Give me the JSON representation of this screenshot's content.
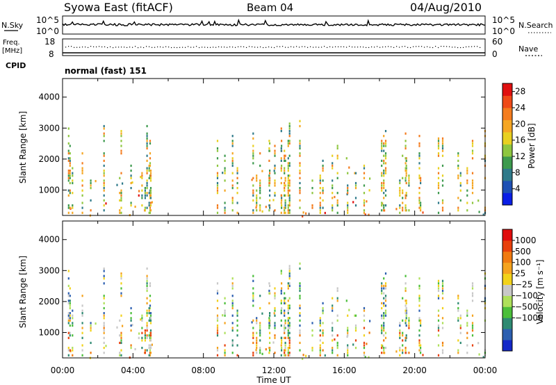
{
  "header": {
    "station": "Syowa East (fitACF)",
    "beam": "Beam 04",
    "date": "04/Aug/2010"
  },
  "panels": {
    "nsky": {
      "left_label": "N.Sky",
      "right_label": "N.Search",
      "left_ticks": [
        "10^5",
        "10^0"
      ],
      "right_ticks": [
        "10^5",
        "10^0"
      ]
    },
    "freq": {
      "left_label_1": "Freq.",
      "left_label_2": "[MHz]",
      "right_label": "Nave",
      "left_ticks": [
        "18",
        "8"
      ],
      "right_ticks": [
        "60",
        "0"
      ]
    },
    "cpid": {
      "label": "CPID",
      "mode": "normal (fast) 151"
    }
  },
  "chart_data": [
    {
      "type": "heatmap",
      "name": "power-panel",
      "ylabel": "Slant Range [km]",
      "xlabel": "Time UT",
      "x_ticks": [
        "00:00",
        "04:00",
        "08:00",
        "12:00",
        "16:00",
        "20:00",
        "00:00"
      ],
      "y_ticks": [
        1000,
        2000,
        3000,
        4000
      ],
      "ylim": [
        180,
        4600
      ],
      "xlim_hours": [
        0,
        24
      ],
      "colorbar": {
        "label": "Power [dB]",
        "ticks": [
          "4",
          "8",
          "12",
          "16",
          "20",
          "24",
          "28"
        ],
        "range": [
          0,
          30
        ],
        "colors": [
          "#0a1ee6",
          "#1e50b4",
          "#2f7a8a",
          "#3d9a4e",
          "#8ec63f",
          "#e8d020",
          "#f5a623",
          "#f47c1e",
          "#ef4a18",
          "#e01010"
        ]
      },
      "activity_regions": [
        {
          "t_start": 0.0,
          "t_end": 0.6,
          "r_min": 180,
          "r_max": 700,
          "level": "high"
        },
        {
          "t_start": 1.5,
          "t_end": 5.2,
          "r_min": 180,
          "r_max": 1500,
          "level": "high"
        },
        {
          "t_start": 8.8,
          "t_end": 12.2,
          "r_min": 300,
          "r_max": 1700,
          "level": "medium"
        },
        {
          "t_start": 13.2,
          "t_end": 21.5,
          "r_min": 180,
          "r_max": 700,
          "level": "high"
        },
        {
          "t_start": 15.0,
          "t_end": 17.5,
          "r_min": 700,
          "r_max": 2200,
          "level": "medium"
        },
        {
          "t_start": 21.5,
          "t_end": 24.0,
          "r_min": 180,
          "r_max": 900,
          "level": "medium"
        }
      ]
    },
    {
      "type": "heatmap",
      "name": "velocity-panel",
      "ylabel": "Slant Range [km]",
      "xlabel": "Time UT",
      "x_ticks": [
        "00:00",
        "04:00",
        "08:00",
        "12:00",
        "16:00",
        "20:00",
        "00:00"
      ],
      "y_ticks": [
        1000,
        2000,
        3000,
        4000
      ],
      "ylim": [
        180,
        4600
      ],
      "xlim_hours": [
        0,
        24
      ],
      "colorbar": {
        "label": "Velocity [m s⁻¹]",
        "ticks": [
          "1000",
          "500",
          "100",
          "25",
          "−25",
          "−100",
          "−500",
          "−1000"
        ],
        "colors": [
          "#1428c8",
          "#2c5fb0",
          "#2e8a72",
          "#4bbf3a",
          "#aee05a",
          "#c8c8c8",
          "#f2d21a",
          "#f5a31e",
          "#f07a10",
          "#e8400c",
          "#e00c0c"
        ]
      }
    }
  ]
}
